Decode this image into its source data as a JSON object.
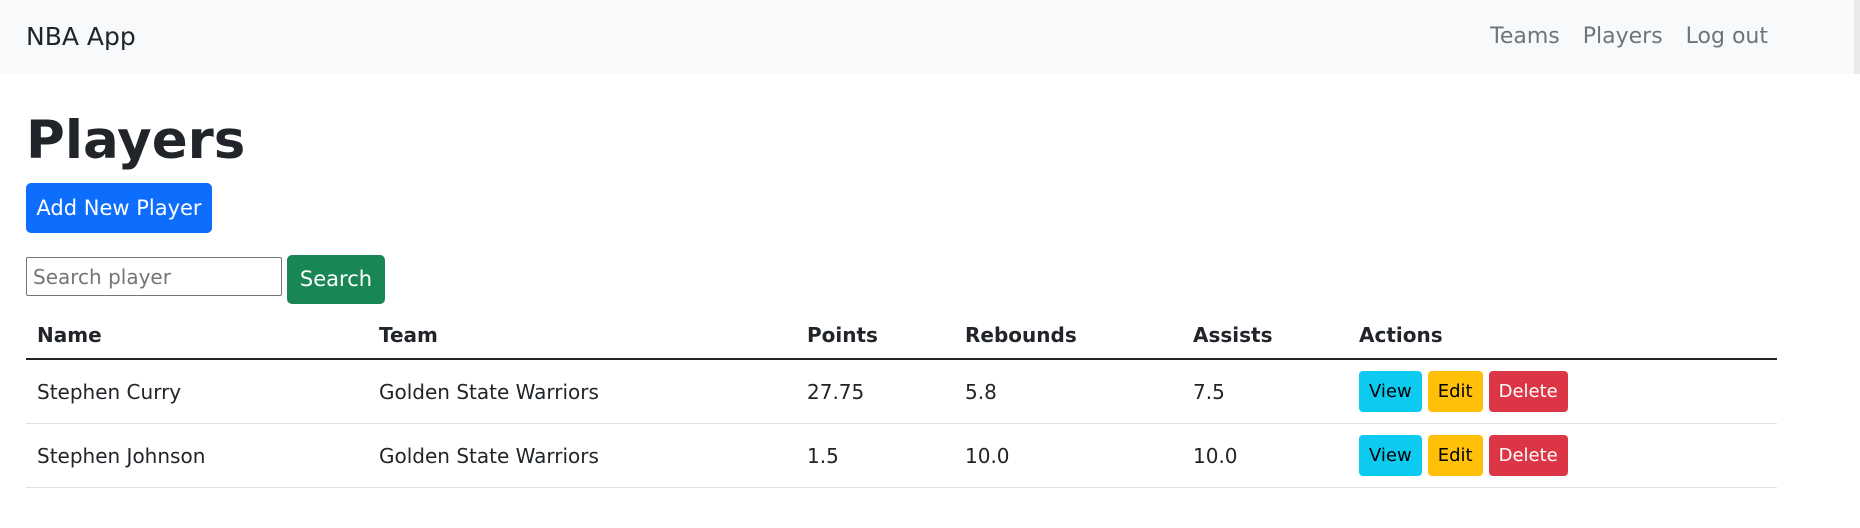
{
  "navbar": {
    "brand": "NBA App",
    "links": [
      "Teams",
      "Players",
      "Log out"
    ]
  },
  "page": {
    "title": "Players",
    "add_button": "Add New Player"
  },
  "search": {
    "placeholder": "Search player",
    "value": "",
    "button_label": "Search"
  },
  "table": {
    "headers": [
      "Name",
      "Team",
      "Points",
      "Rebounds",
      "Assists",
      "Actions"
    ],
    "rows": [
      {
        "name": "Stephen Curry",
        "team": "Golden State Warriors",
        "points": "27.75",
        "rebounds": "5.8",
        "assists": "7.5"
      },
      {
        "name": "Stephen Johnson",
        "team": "Golden State Warriors",
        "points": "1.5",
        "rebounds": "10.0",
        "assists": "10.0"
      }
    ],
    "actions": {
      "view": "View",
      "edit": "Edit",
      "delete": "Delete"
    }
  },
  "colors": {
    "primary": "#0d6efd",
    "success": "#198754",
    "info": "#0dcaf0",
    "warning": "#ffc107",
    "danger": "#dc3545"
  }
}
